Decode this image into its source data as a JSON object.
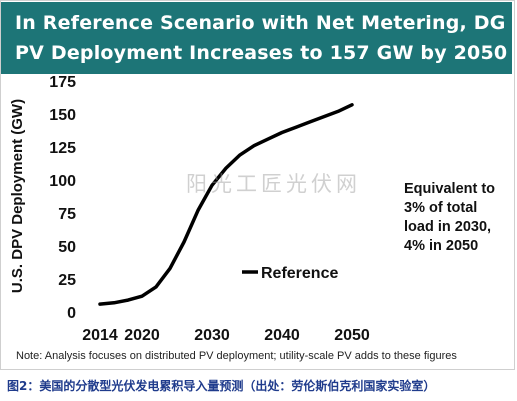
{
  "banner": {
    "line1": "In Reference Scenario with Net Metering, DG",
    "line2": "PV Deployment Increases to 157 GW by 2050"
  },
  "annotation": {
    "lines": [
      "Equivalent to",
      "3% of total",
      "load in 2030,",
      "4% in 2050"
    ]
  },
  "watermark": "阳光工匠光伏网",
  "note": "Note: Analysis focuses on distributed PV deployment; utility-scale PV adds to these figures",
  "caption": "图2：美国的分散型光伏发电累积导入量预测（出处：劳伦斯伯克利国家实验室）",
  "chart_data": {
    "type": "line",
    "title": "In Reference Scenario with Net Metering, DG PV Deployment Increases to 157 GW by 2050",
    "xlabel": "",
    "ylabel": "U.S. DPV Deployment (GW)",
    "xlim": [
      2014,
      2050
    ],
    "ylim": [
      0,
      175
    ],
    "xticks": [
      2014,
      2020,
      2030,
      2040,
      2050
    ],
    "xtick_labels": [
      "2014",
      "2020",
      "2030",
      "2040",
      "2050"
    ],
    "yticks": [
      0,
      25,
      50,
      75,
      100,
      125,
      150,
      175
    ],
    "ytick_labels": [
      "0",
      "25",
      "50",
      "75",
      "100",
      "125",
      "150",
      "175"
    ],
    "grid": false,
    "legend": {
      "position": "center-right",
      "entries": [
        "Reference"
      ]
    },
    "series": [
      {
        "name": "Reference",
        "color": "#000000",
        "x": [
          2014,
          2016,
          2018,
          2020,
          2022,
          2024,
          2026,
          2028,
          2030,
          2032,
          2034,
          2036,
          2038,
          2040,
          2042,
          2044,
          2046,
          2048,
          2050
        ],
        "y": [
          6,
          7,
          9,
          12,
          19,
          33,
          53,
          77,
          96,
          109,
          119,
          126,
          131,
          136,
          140,
          144,
          148,
          152,
          157
        ]
      }
    ]
  }
}
